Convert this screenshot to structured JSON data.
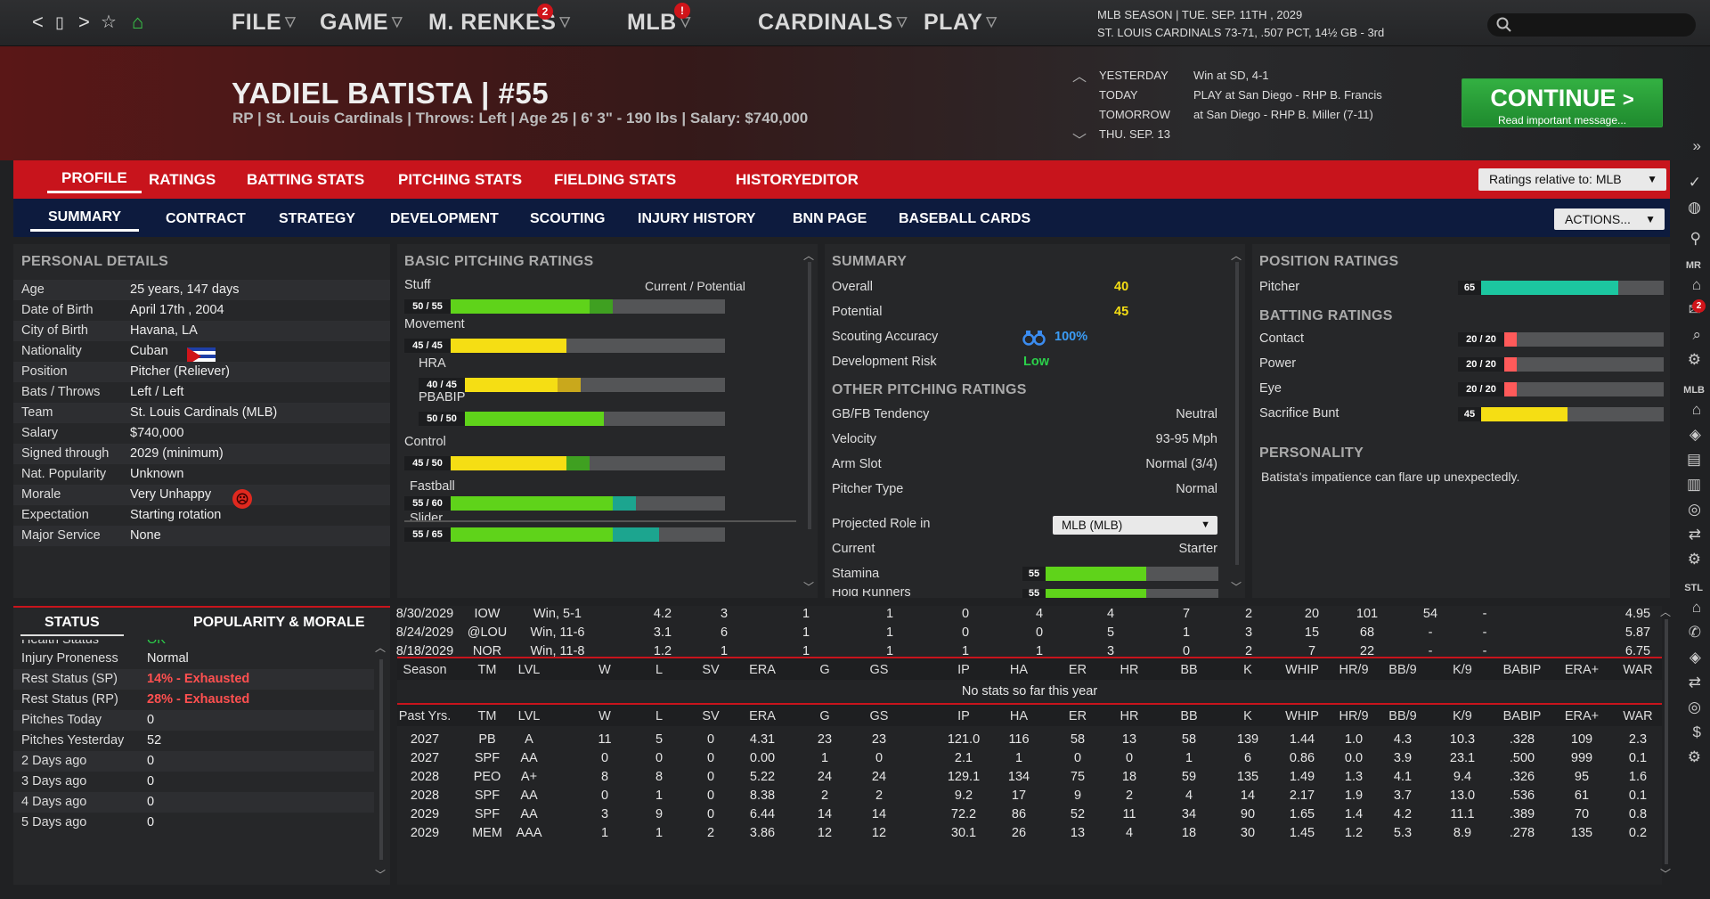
{
  "topnav": {
    "back": "<",
    "window": "▯",
    "forward": ">",
    "star": "☆",
    "home": "⌂",
    "menus": [
      "FILE",
      "GAME",
      "M. RENKES",
      "MLB",
      "CARDINALS",
      "PLAY"
    ],
    "renkes_badge": "2",
    "mlb_badge": "!",
    "season_line1": "MLB SEASON  |  TUE. SEP. 11TH , 2029",
    "season_line2": "ST. LOUIS CARDINALS  73-71, .507 PCT, 14½ GB - 3rd",
    "search_icon": "search-icon"
  },
  "player": {
    "name": "YADIEL BATISTA  |  #55",
    "info": "RP | St. Louis Cardinals  |  Throws: Left  |  Age 25  |  6' 3\"  - 190 lbs  |  Salary: $740,000"
  },
  "schedule": [
    {
      "label": "YESTERDAY",
      "value": "Win at SD, 4-1"
    },
    {
      "label": "TODAY",
      "value": "PLAY at San Diego - RHP B. Francis"
    },
    {
      "label": "TOMORROW",
      "value": "at San Diego - RHP B. Miller (7-11)"
    },
    {
      "label": "THU. SEP. 13",
      "value": ""
    }
  ],
  "continue": {
    "label": "CONTINUE",
    "sub": "Read important message..."
  },
  "tabs_main": [
    "PROFILE",
    "RATINGS",
    "BATTING STATS",
    "PITCHING STATS",
    "FIELDING STATS",
    "HISTORY",
    "EDITOR"
  ],
  "ratings_relative": "Ratings relative to: MLB",
  "tabs_sub": [
    "SUMMARY",
    "CONTRACT",
    "STRATEGY",
    "DEVELOPMENT",
    "SCOUTING",
    "INJURY HISTORY",
    "BNN PAGE",
    "BASEBALL CARDS"
  ],
  "actions_label": "ACTIONS...",
  "personal": {
    "title": "PERSONAL DETAILS",
    "rows": [
      {
        "k": "Age",
        "v": "25 years, 147 days"
      },
      {
        "k": "Date of Birth",
        "v": "April 17th , 2004"
      },
      {
        "k": "City of Birth",
        "v": "Havana, LA"
      },
      {
        "k": "Nationality",
        "v": "Cuban"
      },
      {
        "k": "Position",
        "v": "Pitcher (Reliever)"
      },
      {
        "k": "Bats / Throws",
        "v": "Left / Left"
      },
      {
        "k": "Team",
        "v": "St. Louis Cardinals (MLB)"
      },
      {
        "k": "Salary",
        "v": "$740,000"
      },
      {
        "k": "Signed through",
        "v": "2029 (minimum)"
      },
      {
        "k": "Nat. Popularity",
        "v": "Unknown"
      },
      {
        "k": "Morale",
        "v": "Very Unhappy"
      },
      {
        "k": "Expectation",
        "v": "Starting rotation"
      },
      {
        "k": "Major Service",
        "v": "None"
      }
    ]
  },
  "status_tabs": [
    "STATUS",
    "POPULARITY & MORALE"
  ],
  "status": {
    "partial": "Health Status",
    "partial_val": "OK",
    "rows": [
      {
        "k": "Injury Proneness",
        "v": "Normal",
        "warn": false
      },
      {
        "k": "Rest Status (SP)",
        "v": "14% - Exhausted",
        "warn": true
      },
      {
        "k": "Rest Status (RP)",
        "v": "28% - Exhausted",
        "warn": true
      },
      {
        "k": "Pitches Today",
        "v": "0",
        "warn": false
      },
      {
        "k": "Pitches Yesterday",
        "v": "52",
        "warn": false
      },
      {
        "k": "2 Days ago",
        "v": "0",
        "warn": false
      },
      {
        "k": "3 Days ago",
        "v": "0",
        "warn": false
      },
      {
        "k": "4 Days ago",
        "v": "0",
        "warn": false
      },
      {
        "k": "5 Days ago",
        "v": "0",
        "warn": false
      }
    ]
  },
  "pitching": {
    "title": "BASIC PITCHING RATINGS",
    "cp_label": "Current / Potential",
    "bars": [
      {
        "name": "Stuff",
        "label": "50 / 55",
        "cur": 50,
        "pot": 55,
        "color": "#5fd31a",
        "pcolor": "#3fa021",
        "indent": false
      },
      {
        "name": "Movement",
        "label": "45 / 45",
        "cur": 45,
        "pot": 45,
        "color": "#f5de14",
        "pcolor": "#c9b312",
        "indent": false
      },
      {
        "name": "HRA",
        "label": "40 / 45",
        "cur": 40,
        "pot": 45,
        "color": "#f5de14",
        "pcolor": "#c9a81c",
        "indent": true
      },
      {
        "name": "PBABIP",
        "label": "50 / 50",
        "cur": 50,
        "pot": 50,
        "color": "#5fd31a",
        "pcolor": "#3fa021",
        "indent": true
      },
      {
        "name": "Control",
        "label": "45 / 50",
        "cur": 45,
        "pot": 50,
        "color": "#f5de14",
        "pcolor": "#3fa021",
        "indent": false
      }
    ],
    "pitches": [
      {
        "name": "Fastball",
        "label": "55 / 60",
        "cur": 55,
        "pot": 60,
        "color": "#5fd31a",
        "pcolor": "#1ca58f"
      },
      {
        "name": "Slider",
        "label": "55 / 65",
        "cur": 55,
        "pot": 65,
        "color": "#5fd31a",
        "pcolor": "#1ca58f"
      }
    ]
  },
  "summary": {
    "title": "SUMMARY",
    "overall_label": "Overall",
    "overall": "40",
    "potential_label": "Potential",
    "potential": "45",
    "scout_label": "Scouting Accuracy",
    "scout": "100%",
    "devrisk_label": "Development Risk",
    "devrisk": "Low",
    "other_title": "OTHER PITCHING RATINGS",
    "other": [
      {
        "k": "GB/FB Tendency",
        "v": "Neutral"
      },
      {
        "k": "Velocity",
        "v": "93-95 Mph"
      },
      {
        "k": "Arm Slot",
        "v": "Normal (3/4)"
      },
      {
        "k": "Pitcher Type",
        "v": "Normal"
      }
    ],
    "projected_label": "Projected Role in",
    "projected_sel": "MLB (MLB)",
    "current_label": "Current",
    "current": "Starter",
    "stamina_label": "Stamina",
    "stamina": "55",
    "stamina_val": 55,
    "hold_label": "Hold Runners",
    "hold": "55",
    "hold_val": 55
  },
  "position": {
    "title": "POSITION RATINGS",
    "pitcher_label": "Pitcher",
    "pitcher": "65",
    "pitcher_val": 65,
    "batting_title": "BATTING RATINGS",
    "batting": [
      {
        "k": "Contact",
        "label": "20 / 20",
        "val": 20,
        "color": "#ff5a5a"
      },
      {
        "k": "Power",
        "label": "20 / 20",
        "val": 20,
        "color": "#ff5a5a"
      },
      {
        "k": "Eye",
        "label": "20 / 20",
        "val": 20,
        "color": "#ff5a5a"
      },
      {
        "k": "Sacrifice Bunt",
        "label": "45",
        "val": 45,
        "color": "#f5de14"
      }
    ],
    "personality_title": "PERSONALITY",
    "personality": "Batista's impatience can flare up unexpectedly."
  },
  "games": [
    [
      "8/30/2029",
      "IOW",
      "Win, 5-1",
      "4.2",
      "3",
      "1",
      "1",
      "0",
      "4",
      "4",
      "7",
      "2",
      "20",
      "101",
      "54",
      "-",
      "4.95"
    ],
    [
      "8/24/2029",
      "@LOU",
      "Win, 11-6",
      "3.1",
      "6",
      "1",
      "1",
      "0",
      "0",
      "5",
      "1",
      "3",
      "15",
      "68",
      "-",
      "-",
      "5.87"
    ],
    [
      "8/18/2029",
      "NOR",
      "Win, 11-8",
      "1.2",
      "1",
      "1",
      "1",
      "1",
      "1",
      "3",
      "0",
      "2",
      "7",
      "22",
      "-",
      "-",
      "6.75"
    ]
  ],
  "season_header": [
    "Season",
    "TM",
    "LVL",
    "W",
    "L",
    "SV",
    "ERA",
    "G",
    "GS",
    "IP",
    "HA",
    "ER",
    "HR",
    "BB",
    "K",
    "WHIP",
    "HR/9",
    "BB/9",
    "K/9",
    "BABIP",
    "ERA+",
    "WAR"
  ],
  "no_stats": "No stats so far this year",
  "past_header": [
    "Past Yrs.",
    "TM",
    "LVL",
    "W",
    "L",
    "SV",
    "ERA",
    "G",
    "GS",
    "IP",
    "HA",
    "ER",
    "HR",
    "BB",
    "K",
    "WHIP",
    "HR/9",
    "BB/9",
    "K/9",
    "BABIP",
    "ERA+",
    "WAR"
  ],
  "past": [
    [
      "2027",
      "PB",
      "A",
      "11",
      "5",
      "0",
      "4.31",
      "23",
      "23",
      "121.0",
      "116",
      "58",
      "13",
      "58",
      "139",
      "1.44",
      "1.0",
      "4.3",
      "10.3",
      ".328",
      "109",
      "2.3"
    ],
    [
      "2027",
      "SPF",
      "AA",
      "0",
      "0",
      "0",
      "0.00",
      "1",
      "0",
      "2.1",
      "1",
      "0",
      "0",
      "1",
      "6",
      "0.86",
      "0.0",
      "3.9",
      "23.1",
      ".500",
      "999",
      "0.1"
    ],
    [
      "2028",
      "PEO",
      "A+",
      "8",
      "8",
      "0",
      "5.22",
      "24",
      "24",
      "129.1",
      "134",
      "75",
      "18",
      "59",
      "135",
      "1.49",
      "1.3",
      "4.1",
      "9.4",
      ".326",
      "95",
      "1.6"
    ],
    [
      "2028",
      "SPF",
      "AA",
      "0",
      "1",
      "0",
      "8.38",
      "2",
      "2",
      "9.2",
      "17",
      "9",
      "2",
      "4",
      "14",
      "2.17",
      "1.9",
      "3.7",
      "13.0",
      ".536",
      "61",
      "0.1"
    ],
    [
      "2029",
      "SPF",
      "AA",
      "3",
      "9",
      "0",
      "6.44",
      "14",
      "14",
      "72.2",
      "86",
      "52",
      "11",
      "34",
      "90",
      "1.65",
      "1.4",
      "4.2",
      "11.1",
      ".389",
      "70",
      "0.8"
    ],
    [
      "2029",
      "MEM",
      "AAA",
      "1",
      "1",
      "2",
      "3.86",
      "12",
      "12",
      "30.1",
      "26",
      "13",
      "4",
      "18",
      "30",
      "1.45",
      "1.2",
      "5.3",
      "8.9",
      ".278",
      "135",
      "0.2"
    ]
  ],
  "sidebar": {
    "mr": "MR",
    "mlb": "MLB",
    "stl": "STL",
    "mail_badge": "2"
  }
}
